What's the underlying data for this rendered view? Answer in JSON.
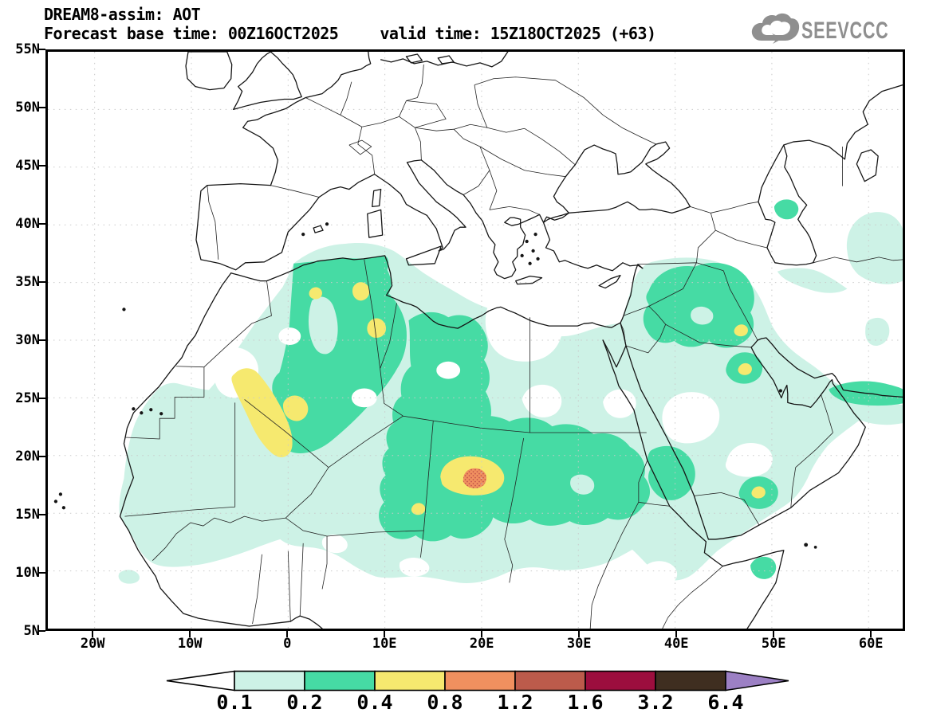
{
  "header": {
    "title": "DREAM8-assim: AOT",
    "forecast_base": "Forecast base time: 00Z16OCT2025",
    "valid_time": "valid time: 15Z18OCT2025 (+63)"
  },
  "logo": {
    "text": "SEEVCCC",
    "icon": "cloud-arrow-icon",
    "color": "#8f8f8f"
  },
  "axes": {
    "y_labels": [
      "55N",
      "50N",
      "45N",
      "40N",
      "35N",
      "30N",
      "25N",
      "20N",
      "15N",
      "10N",
      "5N"
    ],
    "x_labels": [
      "20W",
      "10W",
      "0",
      "10E",
      "20E",
      "30E",
      "40E",
      "50E",
      "60E"
    ]
  },
  "colorbar": {
    "tick_labels": [
      "0.1",
      "0.2",
      "0.4",
      "0.8",
      "1.2",
      "1.6",
      "3.2",
      "6.4"
    ],
    "values": [
      0.1,
      0.2,
      0.4,
      0.8,
      1.2,
      1.6,
      3.2,
      6.4
    ],
    "segment_colors": [
      "#cdf2e6",
      "#46dba4",
      "#f6e96f",
      "#f0905f",
      "#bc5b4b",
      "#9c0e3e",
      "#3f2e20"
    ],
    "below_min_color": "#ffffff",
    "above_max_color": "#9c80c4",
    "outline_color": "#000000"
  },
  "map_palette": {
    "aot_0_1": "#cdf2e6",
    "aot_0_2": "#46dba4",
    "aot_0_4": "#f6e96f",
    "aot_0_8": "#f0905f",
    "stipple": "#c0504a",
    "gridline": "#c9c9c9",
    "coastline": "#151515",
    "background": "#ffffff"
  }
}
